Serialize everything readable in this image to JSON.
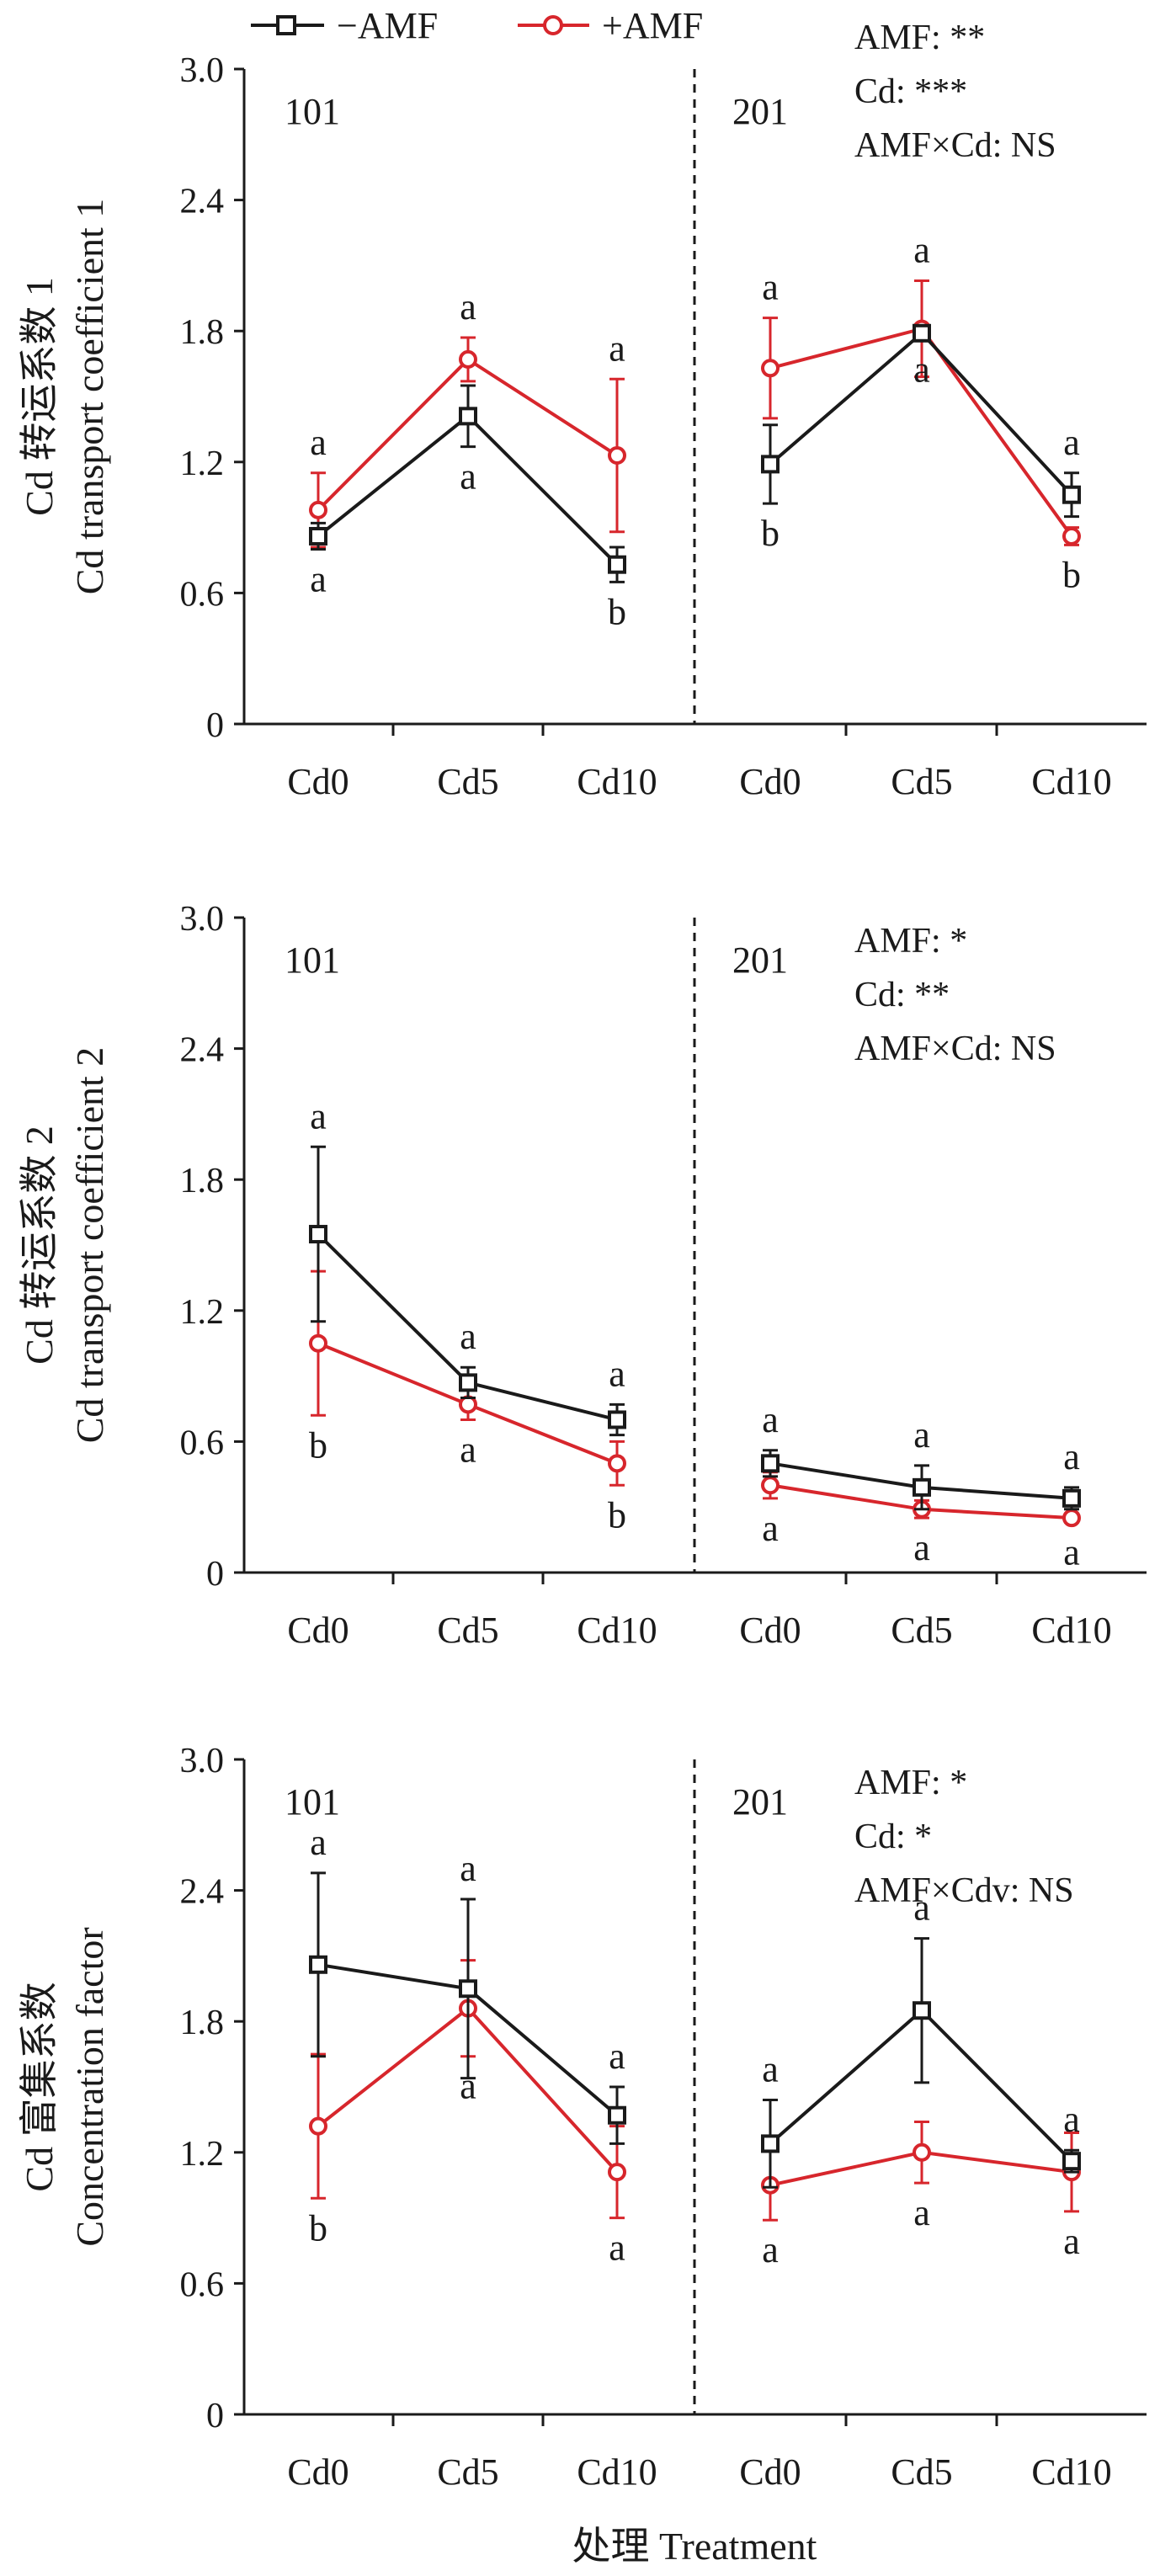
{
  "legend": {
    "items": [
      {
        "label": "−AMF",
        "color": "#1a1a1a",
        "marker": "square"
      },
      {
        "label": "+AMF",
        "color": "#d7262c",
        "marker": "circle"
      }
    ]
  },
  "xlabel": "处理 Treatment",
  "chart_data": [
    {
      "type": "line",
      "ylabel_cn": "Cd 转运系数 1",
      "ylabel_en": "Cd transport coefficient 1",
      "ylim": [
        0,
        3.0
      ],
      "yticks": [
        "0",
        "0.6",
        "1.2",
        "1.8",
        "2.4",
        "3.0"
      ],
      "groups": [
        "101",
        "201"
      ],
      "categories": [
        "Cd0",
        "Cd5",
        "Cd10",
        "Cd0",
        "Cd5",
        "Cd10"
      ],
      "stats": [
        "AMF: **",
        "Cd: ***",
        "AMF×Cd: NS"
      ],
      "series": [
        {
          "name": "−AMF",
          "values": [
            0.86,
            1.41,
            0.73,
            1.19,
            1.79,
            1.05
          ],
          "errors": [
            0.06,
            0.14,
            0.08,
            0.18,
            0.03,
            0.1
          ],
          "letters": [
            "a",
            "a",
            "b",
            "b",
            "a",
            "a"
          ]
        },
        {
          "name": "+AMF",
          "values": [
            0.98,
            1.67,
            1.23,
            1.63,
            1.81,
            0.86
          ],
          "errors": [
            0.17,
            0.1,
            0.35,
            0.23,
            0.22,
            0.04
          ],
          "letters": [
            "a",
            "a",
            "a",
            "a",
            "a",
            "b"
          ]
        }
      ]
    },
    {
      "type": "line",
      "ylabel_cn": "Cd 转运系数 2",
      "ylabel_en": "Cd transport coefficient 2",
      "ylim": [
        0,
        3.0
      ],
      "yticks": [
        "0",
        "0.6",
        "1.2",
        "1.8",
        "2.4",
        "3.0"
      ],
      "groups": [
        "101",
        "201"
      ],
      "categories": [
        "Cd0",
        "Cd5",
        "Cd10",
        "Cd0",
        "Cd5",
        "Cd10"
      ],
      "stats": [
        "AMF: *",
        "Cd: **",
        "AMF×Cd: NS"
      ],
      "series": [
        {
          "name": "−AMF",
          "values": [
            1.55,
            0.87,
            0.7,
            0.5,
            0.39,
            0.34
          ],
          "errors": [
            0.4,
            0.07,
            0.07,
            0.06,
            0.1,
            0.05
          ],
          "letters": [
            "a",
            "a",
            "a",
            "a",
            "a",
            "a"
          ]
        },
        {
          "name": "+AMF",
          "values": [
            1.05,
            0.77,
            0.5,
            0.4,
            0.29,
            0.25
          ],
          "errors": [
            0.33,
            0.07,
            0.1,
            0.06,
            0.04,
            0.02
          ],
          "letters": [
            "b",
            "a",
            "b",
            "a",
            "a",
            "a"
          ]
        }
      ]
    },
    {
      "type": "line",
      "ylabel_cn": "Cd 富集系数",
      "ylabel_en": "Concentration factor",
      "ylim": [
        0,
        3.0
      ],
      "yticks": [
        "0",
        "0.6",
        "1.2",
        "1.8",
        "2.4",
        "3.0"
      ],
      "groups": [
        "101",
        "201"
      ],
      "categories": [
        "Cd0",
        "Cd5",
        "Cd10",
        "Cd0",
        "Cd5",
        "Cd10"
      ],
      "stats": [
        "AMF: *",
        "Cd: *",
        "AMF×Cdv: NS"
      ],
      "series": [
        {
          "name": "−AMF",
          "values": [
            2.06,
            1.95,
            1.37,
            1.24,
            1.85,
            1.16
          ],
          "errors": [
            0.42,
            0.41,
            0.13,
            0.2,
            0.33,
            0.05
          ],
          "letters": [
            "a",
            "a",
            "a",
            "a",
            "a",
            "a"
          ]
        },
        {
          "name": "+AMF",
          "values": [
            1.32,
            1.86,
            1.11,
            1.05,
            1.2,
            1.11
          ],
          "errors": [
            0.33,
            0.22,
            0.21,
            0.16,
            0.14,
            0.18
          ],
          "letters": [
            "b",
            "a",
            "a",
            "a",
            "a",
            "a"
          ]
        }
      ]
    }
  ]
}
